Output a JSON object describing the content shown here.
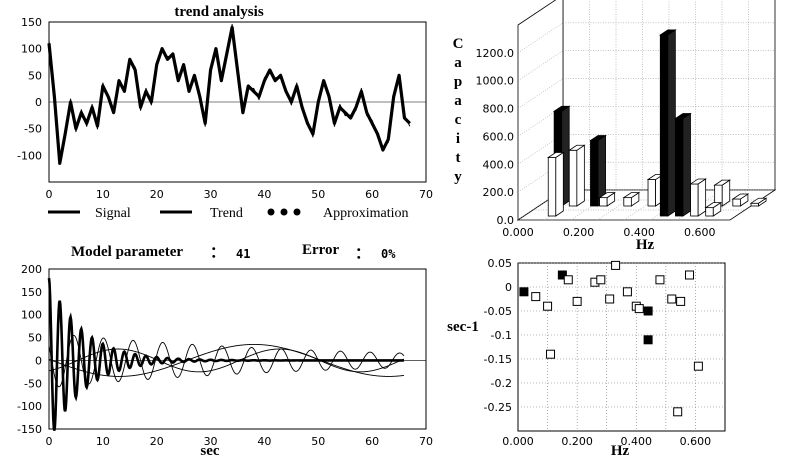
{
  "chart_data": [
    {
      "type": "line",
      "title": "trend analysis",
      "xlim": [
        0,
        70
      ],
      "ylim": [
        -150,
        150
      ],
      "x_ticks": [
        0,
        10,
        20,
        30,
        40,
        50,
        60,
        70
      ],
      "y_ticks": [
        -100,
        -50,
        0,
        50,
        100,
        150
      ],
      "legend_position": "bottom",
      "legend": [
        "Signal",
        "Trend",
        "Approximation"
      ],
      "series": [
        {
          "name": "Signal",
          "color": "#000000",
          "x": [
            0,
            1,
            2,
            3,
            4,
            5,
            6,
            7,
            8,
            9,
            10,
            11,
            12,
            13,
            14,
            15,
            16,
            17,
            18,
            19,
            20,
            21,
            22,
            23,
            24,
            25,
            26,
            27,
            28,
            29,
            30,
            31,
            32,
            33,
            34,
            35,
            36,
            37,
            38,
            39,
            40,
            41,
            42,
            43,
            44,
            45,
            46,
            47,
            48,
            49,
            50,
            51,
            52,
            53,
            54,
            55,
            56,
            57,
            58,
            59,
            60,
            61,
            62,
            63,
            64,
            65,
            66,
            67
          ],
          "values": [
            110,
            10,
            -115,
            -60,
            0,
            -50,
            -20,
            -40,
            -10,
            -45,
            30,
            10,
            -20,
            40,
            20,
            80,
            60,
            -10,
            20,
            0,
            70,
            100,
            80,
            90,
            40,
            70,
            20,
            50,
            10,
            -40,
            60,
            100,
            40,
            90,
            140,
            60,
            -20,
            30,
            20,
            10,
            40,
            60,
            40,
            50,
            20,
            0,
            30,
            -10,
            -40,
            -60,
            0,
            40,
            10,
            -40,
            -10,
            -20,
            -30,
            -10,
            20,
            -20,
            -40,
            -60,
            -90,
            -70,
            10,
            50,
            -30,
            -40
          ]
        }
      ]
    },
    {
      "type": "bar",
      "title": "",
      "ylabel": "Capacity",
      "xlabel": "Hz",
      "x_ticks": [
        "0.000",
        "0.200",
        "0.400",
        "0.600"
      ],
      "y_ticks": [
        "0.0",
        "200.0",
        "400.0",
        "600.0",
        "800.0",
        "1000.0",
        "1200.0"
      ],
      "ylim": [
        0,
        1400
      ],
      "xlim": [
        0,
        0.7
      ],
      "grid": true,
      "series": [
        {
          "name": "black",
          "bars": [
            {
              "x": 0.05,
              "depth": 1,
              "value": 680
            },
            {
              "x": 0.17,
              "depth": 1,
              "value": 470
            },
            {
              "x": 0.45,
              "depth": 0,
              "value": 1300
            },
            {
              "x": 0.5,
              "depth": 0,
              "value": 700
            }
          ]
        },
        {
          "name": "white",
          "bars": [
            {
              "x": 0.08,
              "depth": 0,
              "value": 420
            },
            {
              "x": 0.1,
              "depth": 1,
              "value": 400
            },
            {
              "x": 0.2,
              "depth": 1,
              "value": 60
            },
            {
              "x": 0.28,
              "depth": 1,
              "value": 60
            },
            {
              "x": 0.36,
              "depth": 1,
              "value": 190
            },
            {
              "x": 0.42,
              "depth": 1,
              "value": 160
            },
            {
              "x": 0.55,
              "depth": 0,
              "value": 230
            },
            {
              "x": 0.58,
              "depth": 1,
              "value": 150
            },
            {
              "x": 0.64,
              "depth": 1,
              "value": 50
            },
            {
              "x": 0.6,
              "depth": 0,
              "value": 60
            },
            {
              "x": 0.7,
              "depth": 1,
              "value": 20
            }
          ]
        }
      ]
    },
    {
      "type": "line",
      "xlabel": "sec",
      "xlim": [
        0,
        70
      ],
      "ylim": [
        -150,
        200
      ],
      "x_ticks": [
        0,
        10,
        20,
        30,
        40,
        50,
        60,
        70
      ],
      "y_ticks": [
        -150,
        -100,
        -50,
        0,
        50,
        100,
        150,
        200
      ],
      "header": {
        "model_label": "Model parameter",
        "model_sep": "：",
        "model_value": "41",
        "error_label": "Error",
        "error_sep": "：",
        "error_value": "0%"
      },
      "components": [
        {
          "amp": 180,
          "period": 2.0,
          "decay": 0.16,
          "phase": 0,
          "offset": 0,
          "weight": "heavy"
        },
        {
          "amp": 60,
          "period": 5.5,
          "decay": 0.02,
          "phase": 1.0,
          "offset": 0,
          "weight": "thin"
        },
        {
          "amp": 35,
          "period": 50,
          "decay": 0,
          "phase": 1.5,
          "offset": 0,
          "weight": "thin"
        },
        {
          "amp": 25,
          "period": 30,
          "decay": 0,
          "phase": 3.6,
          "offset": 0,
          "weight": "thin"
        }
      ]
    },
    {
      "type": "scatter",
      "xlabel": "Hz",
      "ylabel": "sec-1",
      "xlim": [
        0,
        0.7
      ],
      "ylim": [
        -0.3,
        0.05
      ],
      "grid": true,
      "x_ticks": [
        "0.000",
        "0.200",
        "0.400",
        "0.600"
      ],
      "y_ticks": [
        "0.05",
        "0",
        "-0.05",
        "-0.1",
        "-0.15",
        "-0.2",
        "-0.25"
      ],
      "series": [
        {
          "name": "filled",
          "points": [
            [
              0.02,
              -0.01
            ],
            [
              0.15,
              0.025
            ],
            [
              0.44,
              -0.05
            ],
            [
              0.44,
              -0.11
            ]
          ]
        },
        {
          "name": "open",
          "points": [
            [
              0.06,
              -0.02
            ],
            [
              0.1,
              -0.04
            ],
            [
              0.11,
              -0.14
            ],
            [
              0.17,
              0.015
            ],
            [
              0.2,
              -0.03
            ],
            [
              0.26,
              0.01
            ],
            [
              0.28,
              0.015
            ],
            [
              0.31,
              -0.025
            ],
            [
              0.33,
              0.045
            ],
            [
              0.37,
              -0.01
            ],
            [
              0.4,
              -0.04
            ],
            [
              0.41,
              -0.045
            ],
            [
              0.48,
              0.015
            ],
            [
              0.52,
              -0.025
            ],
            [
              0.55,
              -0.03
            ],
            [
              0.58,
              0.025
            ],
            [
              0.61,
              -0.165
            ],
            [
              0.54,
              -0.26
            ]
          ]
        }
      ]
    }
  ]
}
